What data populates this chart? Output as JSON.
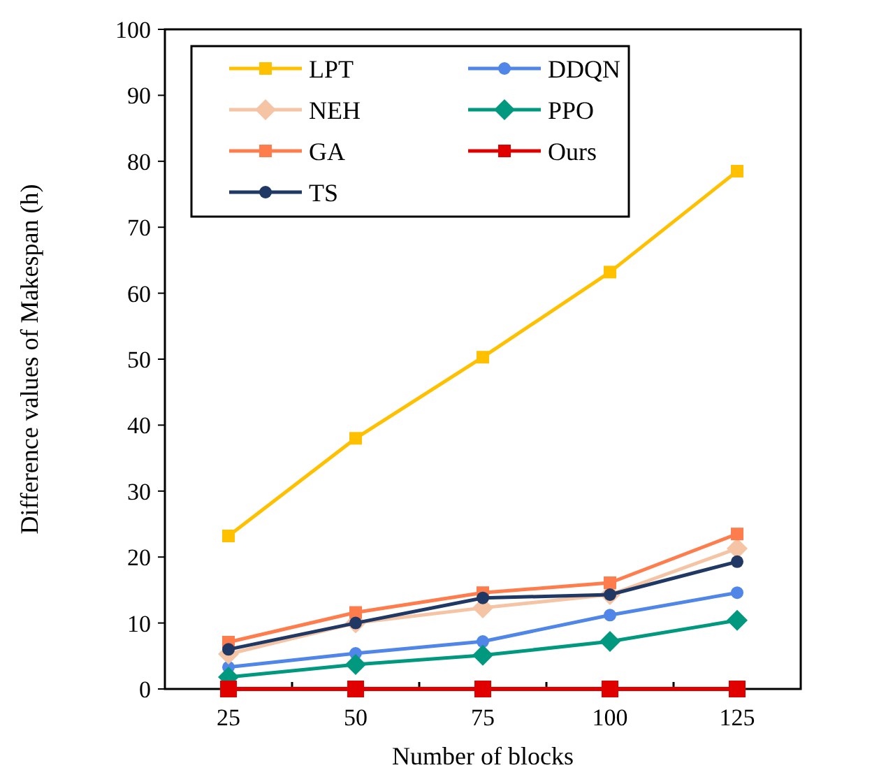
{
  "chart_data": {
    "type": "line",
    "xlabel": "Number of blocks",
    "ylabel": "Difference values of Makespan (h)",
    "categories": [
      "25",
      "50",
      "75",
      "100",
      "125"
    ],
    "series": [
      {
        "name": "LPT",
        "color": "#ffc000",
        "marker": "square",
        "values": [
          23.2,
          38.0,
          50.3,
          63.2,
          78.5
        ]
      },
      {
        "name": "DDQN",
        "color": "#4f86e8",
        "marker": "circle",
        "values": [
          3.3,
          5.4,
          7.2,
          11.2,
          14.6
        ]
      },
      {
        "name": "NEH",
        "color": "#f4c4a4",
        "marker": "diamond",
        "values": [
          5.3,
          10.0,
          12.3,
          14.3,
          21.3
        ]
      },
      {
        "name": "PPO",
        "color": "#009980",
        "marker": "diamond",
        "values": [
          1.8,
          3.7,
          5.1,
          7.2,
          10.4
        ]
      },
      {
        "name": "GA",
        "color": "#ff7c4c",
        "marker": "square",
        "values": [
          7.1,
          11.6,
          14.6,
          16.1,
          23.5
        ]
      },
      {
        "name": "Ours",
        "color": "#e00000",
        "marker": "square",
        "values": [
          0,
          0,
          0,
          0,
          0
        ]
      },
      {
        "name": "TS",
        "color": "#203864",
        "marker": "circle",
        "values": [
          6.0,
          10.0,
          13.8,
          14.3,
          19.3
        ]
      }
    ],
    "ylim": [
      0,
      100
    ],
    "yticks": [
      0,
      10,
      20,
      30,
      40,
      50,
      60,
      70,
      80,
      90,
      100
    ],
    "grid": false,
    "legend": "top left",
    "line_style": "solid"
  }
}
